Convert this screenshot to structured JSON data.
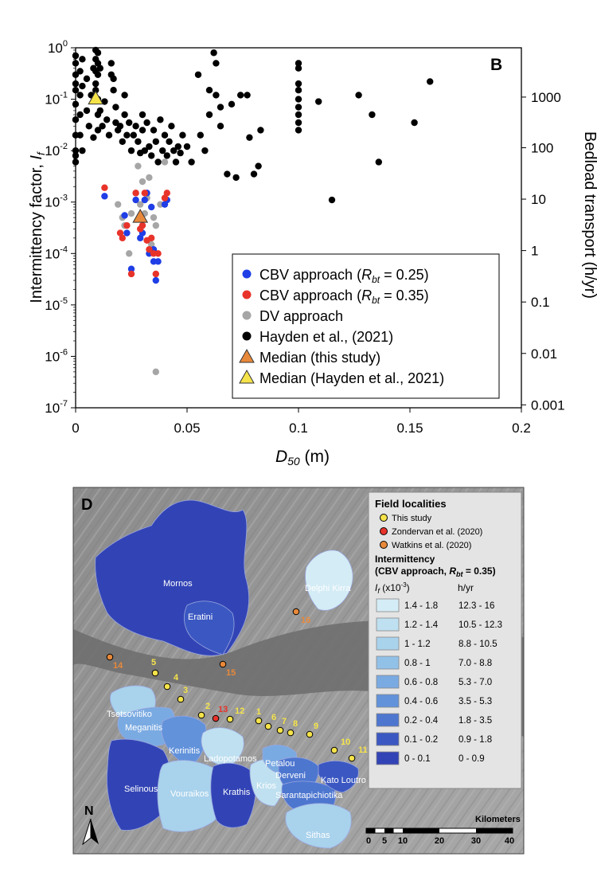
{
  "panel_b": {
    "panel_label": "B",
    "ylabel_main": "Intermittency factor, ",
    "ylabel_sym": "I",
    "ylabel_sub": "f",
    "xlabel_sym": "D",
    "xlabel_sub": "50",
    "xlabel_unit": " (m)",
    "y2label": "Bedload transport (h/yr)",
    "legend": {
      "items": [
        {
          "color": "#1f3ee6",
          "shape": "circle",
          "label": "CBV approach (",
          "sym": "R",
          "sub": "bt",
          "rest": " = 0.25)"
        },
        {
          "color": "#e8332a",
          "shape": "circle",
          "label": "CBV approach (",
          "sym": "R",
          "sub": "bt",
          "rest": " = 0.35)"
        },
        {
          "color": "#a6a6a6",
          "shape": "circle",
          "label": "DV approach"
        },
        {
          "color": "#000000",
          "shape": "circle",
          "label": "Hayden et al., (2021)"
        },
        {
          "color": "#e8893a",
          "shape": "triangle",
          "label": "Median (this study)"
        },
        {
          "color": "#f5e34a",
          "shape": "triangle",
          "label": "Median (Hayden et al., 2021)"
        }
      ]
    }
  },
  "chart_data": {
    "type": "scatter",
    "xlim": [
      0,
      0.2
    ],
    "ylim": [
      1e-07,
      1
    ],
    "yscale": "log",
    "x_ticks": [
      0,
      0.05,
      0.1,
      0.15,
      0.2
    ],
    "x_tick_labels": [
      "0",
      "0.05",
      "0.1",
      "0.15",
      "0.2"
    ],
    "y_ticks": [
      1,
      0.1,
      0.01,
      0.001,
      0.0001,
      1e-05,
      1e-06,
      1e-07
    ],
    "y_tick_labels": [
      {
        "base": "10",
        "exp": "0"
      },
      {
        "base": "10",
        "exp": "-1"
      },
      {
        "base": "10",
        "exp": "-2"
      },
      {
        "base": "10",
        "exp": "-3"
      },
      {
        "base": "10",
        "exp": "-4"
      },
      {
        "base": "10",
        "exp": "-5"
      },
      {
        "base": "10",
        "exp": "-6"
      },
      {
        "base": "10",
        "exp": "-7"
      }
    ],
    "y2_ticks": [
      {
        "at": 0.11,
        "label": "1000"
      },
      {
        "at": 0.0114,
        "label": "100"
      },
      {
        "at": 0.00114,
        "label": "10"
      },
      {
        "at": 0.000114,
        "label": "1"
      },
      {
        "at": 1.14e-05,
        "label": "0.1"
      },
      {
        "at": 1.14e-06,
        "label": "0.01"
      },
      {
        "at": 1.14e-07,
        "label": "0.001"
      }
    ],
    "series": [
      {
        "name": "Hayden et al., (2021)",
        "color": "#000000",
        "points": [
          [
            0,
            0.5
          ],
          [
            0,
            0.3
          ],
          [
            0,
            0.2
          ],
          [
            0,
            0.15
          ],
          [
            0,
            0.08
          ],
          [
            0,
            0.04
          ],
          [
            0,
            0.02
          ],
          [
            0,
            0.008
          ],
          [
            0,
            0.006
          ],
          [
            0,
            0.01
          ],
          [
            0,
            0.7
          ],
          [
            0.002,
            0.35
          ],
          [
            0.002,
            0.12
          ],
          [
            0.002,
            0.05
          ],
          [
            0.002,
            0.02
          ],
          [
            0.003,
            0.6
          ],
          [
            0.003,
            0.18
          ],
          [
            0.003,
            0.01
          ],
          [
            0.005,
            0.25
          ],
          [
            0.005,
            0.06
          ],
          [
            0.006,
            0.03
          ],
          [
            0.007,
            0.12
          ],
          [
            0.008,
            0.4
          ],
          [
            0.008,
            0.018
          ],
          [
            0.009,
            0.9
          ],
          [
            0.009,
            0.6
          ],
          [
            0.009,
            0.35
          ],
          [
            0.009,
            0.2
          ],
          [
            0.009,
            0.15
          ],
          [
            0.01,
            0.8
          ],
          [
            0.01,
            0.5
          ],
          [
            0.01,
            0.3
          ],
          [
            0.01,
            0.1
          ],
          [
            0.01,
            0.05
          ],
          [
            0.01,
            0.025
          ],
          [
            0.011,
            0.4
          ],
          [
            0.011,
            0.06
          ],
          [
            0.012,
            0.03
          ],
          [
            0.013,
            0.09
          ],
          [
            0.014,
            0.04
          ],
          [
            0.015,
            0.02
          ],
          [
            0.016,
            0.5
          ],
          [
            0.016,
            0.3
          ],
          [
            0.017,
            0.25
          ],
          [
            0.017,
            0.15
          ],
          [
            0.018,
            0.035
          ],
          [
            0.018,
            0.07
          ],
          [
            0.019,
            0.025
          ],
          [
            0.02,
            0.03
          ],
          [
            0.021,
            0.015
          ],
          [
            0.022,
            0.05
          ],
          [
            0.022,
            0.12
          ],
          [
            0.023,
            0.02
          ],
          [
            0.024,
            0.035
          ],
          [
            0.025,
            0.01
          ],
          [
            0.026,
            0.02
          ],
          [
            0.027,
            0.03
          ],
          [
            0.028,
            0.015
          ],
          [
            0.029,
            0.009
          ],
          [
            0.03,
            0.025
          ],
          [
            0.03,
            0.05
          ],
          [
            0.031,
            0.01
          ],
          [
            0.032,
            0.035
          ],
          [
            0.033,
            0.012
          ],
          [
            0.034,
            0.008
          ],
          [
            0.035,
            0.025
          ],
          [
            0.036,
            0.015
          ],
          [
            0.037,
            0.006
          ],
          [
            0.038,
            0.04
          ],
          [
            0.039,
            0.01
          ],
          [
            0.04,
            0.02
          ],
          [
            0.041,
            0.008
          ],
          [
            0.042,
            0.015
          ],
          [
            0.043,
            0.03
          ],
          [
            0.044,
            0.01
          ],
          [
            0.045,
            0.006
          ],
          [
            0.046,
            0.012
          ],
          [
            0.047,
            0.009
          ],
          [
            0.048,
            0.02
          ],
          [
            0.05,
            0.012
          ],
          [
            0.052,
            0.006
          ],
          [
            0.055,
            0.3
          ],
          [
            0.056,
            0.02
          ],
          [
            0.058,
            0.01
          ],
          [
            0.06,
            0.15
          ],
          [
            0.06,
            0.05
          ],
          [
            0.062,
            0.8
          ],
          [
            0.063,
            0.5
          ],
          [
            0.063,
            0.12
          ],
          [
            0.065,
            0.03
          ],
          [
            0.065,
            0.07
          ],
          [
            0.068,
            0.0035
          ],
          [
            0.07,
            0.08
          ],
          [
            0.072,
            0.003
          ],
          [
            0.074,
            0.12
          ],
          [
            0.077,
            0.12
          ],
          [
            0.078,
            0.018
          ],
          [
            0.08,
            0.0035
          ],
          [
            0.082,
            0.005
          ],
          [
            0.083,
            0.025
          ],
          [
            0.1,
            0.5
          ],
          [
            0.1,
            0.4
          ],
          [
            0.1,
            0.2
          ],
          [
            0.1,
            0.15
          ],
          [
            0.1,
            0.1
          ],
          [
            0.1,
            0.07
          ],
          [
            0.1,
            0.05
          ],
          [
            0.1,
            0.035
          ],
          [
            0.1,
            0.025
          ],
          [
            0.109,
            0.09
          ],
          [
            0.115,
            0.0011
          ],
          [
            0.127,
            0.12
          ],
          [
            0.133,
            0.05
          ],
          [
            0.136,
            0.006
          ],
          [
            0.152,
            0.035
          ],
          [
            0.159,
            0.22
          ]
        ]
      },
      {
        "name": "DV approach",
        "color": "#a6a6a6",
        "points": [
          [
            0.019,
            0.0009
          ],
          [
            0.021,
            0.0005
          ],
          [
            0.022,
            0.00035
          ],
          [
            0.024,
            0.0001
          ],
          [
            0.025,
            0.0006
          ],
          [
            0.027,
            0.0015
          ],
          [
            0.028,
            0.005
          ],
          [
            0.029,
            0.0009
          ],
          [
            0.03,
            0.0025
          ],
          [
            0.031,
            0.0006
          ],
          [
            0.032,
            0.0012
          ],
          [
            0.033,
            0.003
          ],
          [
            0.034,
            0.00015
          ],
          [
            0.035,
            0.0005
          ],
          [
            0.036,
            0.00035
          ],
          [
            0.036,
            5e-07
          ],
          [
            0.038,
            0.0009
          ],
          [
            0.04,
            0.006
          ]
        ]
      },
      {
        "name": "CBV approach (Rbt = 0.25)",
        "color": "#1f3ee6",
        "points": [
          [
            0.013,
            0.0013
          ],
          [
            0.022,
            0.00055
          ],
          [
            0.023,
            0.00025
          ],
          [
            0.025,
            5e-05
          ],
          [
            0.027,
            0.0011
          ],
          [
            0.029,
            0.0002
          ],
          [
            0.03,
            0.00025
          ],
          [
            0.031,
            0.0011
          ],
          [
            0.032,
            0.0015
          ],
          [
            0.033,
            0.0001
          ],
          [
            0.034,
            0.0008
          ],
          [
            0.035,
            7e-05
          ],
          [
            0.035,
            0.00012
          ],
          [
            0.036,
            3e-05
          ],
          [
            0.037,
            7e-05
          ],
          [
            0.04,
            0.0009
          ],
          [
            0.041,
            0.0011
          ]
        ]
      },
      {
        "name": "CBV approach (Rbt = 0.35)",
        "color": "#e8332a",
        "points": [
          [
            0.013,
            0.0019
          ],
          [
            0.02,
            0.00025
          ],
          [
            0.021,
            0.0002
          ],
          [
            0.023,
            0.00035
          ],
          [
            0.025,
            4e-05
          ],
          [
            0.027,
            0.0015
          ],
          [
            0.029,
            0.0003
          ],
          [
            0.03,
            0.00035
          ],
          [
            0.031,
            0.0015
          ],
          [
            0.032,
            0.00018
          ],
          [
            0.033,
            0.00012
          ],
          [
            0.034,
            0.0002
          ],
          [
            0.035,
            0.0001
          ],
          [
            0.036,
            4e-05
          ],
          [
            0.037,
            0.0001
          ],
          [
            0.04,
            0.0012
          ],
          [
            0.041,
            0.0015
          ]
        ]
      },
      {
        "name": "Median (this study)",
        "color": "#e8893a",
        "marker": "triangle",
        "points": [
          [
            0.029,
            0.0005
          ]
        ]
      },
      {
        "name": "Median (Hayden et al., 2021)",
        "color": "#f5e34a",
        "marker": "triangle",
        "points": [
          [
            0.009,
            0.1
          ]
        ]
      }
    ]
  },
  "panel_d": {
    "panel_label": "D",
    "legend": {
      "title": "Field localities",
      "localities": [
        {
          "color": "#f5e34a",
          "label": "This study"
        },
        {
          "color": "#e8332a",
          "label": "Zondervan et al. (2020)"
        },
        {
          "color": "#e8893a",
          "label": "Watkins et al. (2020)"
        }
      ],
      "int_title1": "Intermittency",
      "int_title2": "(CBV approach, ",
      "int_title_sym": "R",
      "int_title_sub": "bt",
      "int_title_rest": " = 0.35)",
      "col1_sym": "I",
      "col1_sub": "f",
      "col1_rest": " (x10",
      "col1_exp": "-3",
      "col1_close": ")",
      "col2": "h/yr",
      "classes": [
        {
          "color": "#d4ecf5",
          "range": "1.4 - 1.8",
          "hyr": "12.3 - 16"
        },
        {
          "color": "#bfe0f0",
          "range": "1.2 - 1.4",
          "hyr": "10.5 - 12.3"
        },
        {
          "color": "#a9d2ec",
          "range": "1 - 1.2",
          "hyr": "8.8 - 10.5"
        },
        {
          "color": "#92c1e8",
          "range": "0.8 - 1",
          "hyr": "7.0 - 8.8"
        },
        {
          "color": "#7aaae2",
          "range": "0.6 - 0.8",
          "hyr": "5.3 - 7.0"
        },
        {
          "color": "#6292da",
          "range": "0.4 - 0.6",
          "hyr": "3.5 - 5.3"
        },
        {
          "color": "#4d76cf",
          "range": "0.2 - 0.4",
          "hyr": "1.8 - 3.5"
        },
        {
          "color": "#3b58c2",
          "range": "0.1 - 0.2",
          "hyr": "0.9 - 1.8"
        },
        {
          "color": "#3244b5",
          "range": "0 - 0.1",
          "hyr": "0 - 0.9"
        }
      ]
    },
    "catchments": [
      "Mornos",
      "Eratini",
      "Delphi Kirra",
      "Tsetsovitiko",
      "Meganitis",
      "Kerinitis",
      "Ladopotamos",
      "Selinous",
      "Vouraikos",
      "Krathis",
      "Krios",
      "Petalou",
      "Derveni",
      "Sarantapichiotika",
      "Kato Loutro",
      "Sithas"
    ],
    "localities": [
      {
        "label": "1",
        "color": "#f5e34a"
      },
      {
        "label": "2",
        "color": "#f5e34a"
      },
      {
        "label": "3",
        "color": "#f5e34a"
      },
      {
        "label": "4",
        "color": "#f5e34a"
      },
      {
        "label": "5",
        "color": "#f5e34a"
      },
      {
        "label": "6",
        "color": "#f5e34a"
      },
      {
        "label": "7",
        "color": "#f5e34a"
      },
      {
        "label": "8",
        "color": "#f5e34a"
      },
      {
        "label": "9",
        "color": "#f5e34a"
      },
      {
        "label": "10",
        "color": "#f5e34a"
      },
      {
        "label": "11",
        "color": "#f5e34a"
      },
      {
        "label": "12",
        "color": "#f5e34a"
      },
      {
        "label": "13",
        "color": "#e8332a"
      },
      {
        "label": "14",
        "color": "#e8893a"
      },
      {
        "label": "15",
        "color": "#e8893a"
      },
      {
        "label": "16",
        "color": "#e8893a"
      }
    ],
    "north_label": "N",
    "scale": {
      "title": "Kilometers",
      "ticks": [
        "0",
        "5",
        "10",
        "20",
        "30",
        "40"
      ]
    }
  }
}
